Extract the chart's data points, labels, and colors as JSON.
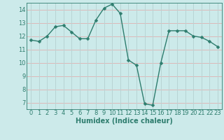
{
  "x": [
    0,
    1,
    2,
    3,
    4,
    5,
    6,
    7,
    8,
    9,
    10,
    11,
    12,
    13,
    14,
    15,
    16,
    17,
    18,
    19,
    20,
    21,
    22,
    23
  ],
  "y": [
    11.7,
    11.6,
    12.0,
    12.7,
    12.8,
    12.3,
    11.8,
    11.8,
    13.2,
    14.1,
    14.4,
    13.7,
    10.2,
    9.8,
    6.9,
    6.8,
    10.0,
    12.4,
    12.4,
    12.4,
    12.0,
    11.9,
    11.6,
    11.2
  ],
  "xlabel": "Humidex (Indice chaleur)",
  "line_color": "#2e7d6e",
  "marker_color": "#2e7d6e",
  "bg_color": "#cceaea",
  "grid_v_color": "#b8d4d4",
  "grid_h_color": "#ddb8b8",
  "xlim": [
    -0.5,
    23.5
  ],
  "ylim": [
    6.5,
    14.5
  ],
  "yticks": [
    7,
    8,
    9,
    10,
    11,
    12,
    13,
    14
  ],
  "xticks": [
    0,
    1,
    2,
    3,
    4,
    5,
    6,
    7,
    8,
    9,
    10,
    11,
    12,
    13,
    14,
    15,
    16,
    17,
    18,
    19,
    20,
    21,
    22,
    23
  ],
  "xlabel_fontsize": 7,
  "tick_fontsize": 6,
  "line_width": 1.0,
  "marker_size": 2.5
}
